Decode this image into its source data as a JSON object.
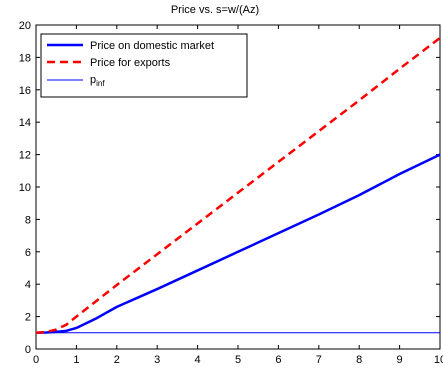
{
  "chart_data": {
    "type": "line",
    "title": "Price vs. s=w/(Az)",
    "xlabel": "",
    "ylabel": "",
    "xlim": [
      0,
      10
    ],
    "ylim": [
      0,
      20
    ],
    "xticks": [
      "0",
      "1",
      "2",
      "3",
      "4",
      "5",
      "6",
      "7",
      "8",
      "9",
      "10"
    ],
    "yticks": [
      "0",
      "2",
      "4",
      "6",
      "8",
      "10",
      "12",
      "14",
      "16",
      "18",
      "20"
    ],
    "grid": false,
    "legend_position": "top-left",
    "series": [
      {
        "name": "Price on domestic market",
        "color": "#0000ff",
        "style": "solid",
        "x": [
          0,
          0.25,
          0.5,
          0.75,
          1,
          1.5,
          2,
          3,
          4,
          5,
          6,
          7,
          8,
          9,
          10
        ],
        "y": [
          1.0,
          1.02,
          1.06,
          1.12,
          1.3,
          1.9,
          2.6,
          3.7,
          4.85,
          6.0,
          7.15,
          8.3,
          9.5,
          10.8,
          12.0
        ]
      },
      {
        "name": "Price for exports",
        "color": "#ff0000",
        "style": "dashed",
        "x": [
          0,
          0.25,
          0.5,
          0.75,
          1,
          2,
          3,
          4,
          5,
          6,
          7,
          8,
          9,
          10
        ],
        "y": [
          1.0,
          1.05,
          1.2,
          1.5,
          2.0,
          3.95,
          5.85,
          7.75,
          9.65,
          11.55,
          13.45,
          15.35,
          17.3,
          19.2
        ]
      },
      {
        "name_main": "p",
        "name_sub": "inf",
        "color": "#0000ff",
        "style": "thin",
        "x": [
          0,
          10
        ],
        "y": [
          1.0,
          1.0
        ]
      }
    ]
  }
}
